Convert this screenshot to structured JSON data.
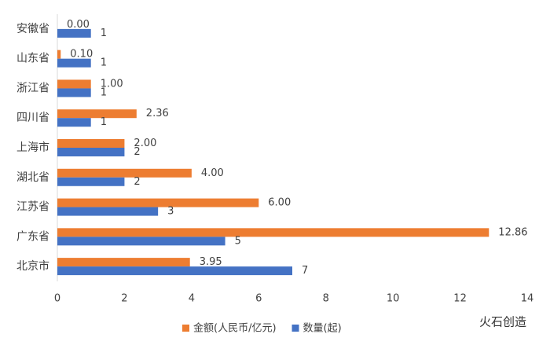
{
  "chart_data": {
    "type": "hbar",
    "categories": [
      "安徽省",
      "山东省",
      "浙江省",
      "四川省",
      "上海市",
      "湖北省",
      "江苏省",
      "广东省",
      "北京市"
    ],
    "series": [
      {
        "name": "金额(人民币/亿元)",
        "color": "#ed7d31",
        "values": [
          0.0,
          0.1,
          1.0,
          2.36,
          2.0,
          4.0,
          6.0,
          12.86,
          3.95
        ],
        "value_labels": [
          "0.00",
          "0.10",
          "1.00",
          "2.36",
          "2.00",
          "4.00",
          "6.00",
          "12.86",
          "3.95"
        ]
      },
      {
        "name": "数量(起)",
        "color": "#4472c4",
        "values": [
          1,
          1,
          1,
          1,
          2,
          2,
          3,
          5,
          7
        ]
      }
    ],
    "xlim": [
      0,
      14
    ],
    "xticks": [
      0,
      2,
      4,
      6,
      8,
      10,
      12,
      14
    ],
    "legend": "bottom",
    "watermark": "火石创造"
  }
}
